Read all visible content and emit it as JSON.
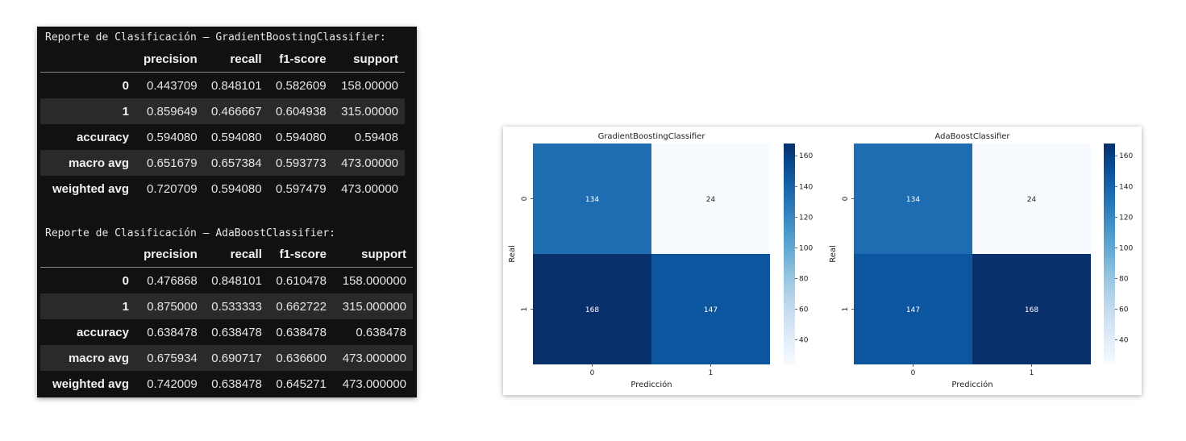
{
  "reports": [
    {
      "title": "Reporte de Clasificación – GradientBoostingClassifier:",
      "columns": [
        "",
        "precision",
        "recall",
        "f1-score",
        "support"
      ],
      "rows": [
        {
          "label": "0",
          "values": [
            "0.443709",
            "0.848101",
            "0.582609",
            "158.00000"
          ]
        },
        {
          "label": "1",
          "values": [
            "0.859649",
            "0.466667",
            "0.604938",
            "315.00000"
          ]
        },
        {
          "label": "accuracy",
          "values": [
            "0.594080",
            "0.594080",
            "0.594080",
            "0.59408"
          ]
        },
        {
          "label": "macro avg",
          "values": [
            "0.651679",
            "0.657384",
            "0.593773",
            "473.00000"
          ]
        },
        {
          "label": "weighted avg",
          "values": [
            "0.720709",
            "0.594080",
            "0.597479",
            "473.00000"
          ]
        }
      ]
    },
    {
      "title": "Reporte de Clasificación – AdaBoostClassifier:",
      "columns": [
        "",
        "precision",
        "recall",
        "f1-score",
        "support"
      ],
      "rows": [
        {
          "label": "0",
          "values": [
            "0.476868",
            "0.848101",
            "0.610478",
            "158.000000"
          ]
        },
        {
          "label": "1",
          "values": [
            "0.875000",
            "0.533333",
            "0.662722",
            "315.000000"
          ]
        },
        {
          "label": "accuracy",
          "values": [
            "0.638478",
            "0.638478",
            "0.638478",
            "0.638478"
          ]
        },
        {
          "label": "macro avg",
          "values": [
            "0.675934",
            "0.690717",
            "0.636600",
            "473.000000"
          ]
        },
        {
          "label": "weighted avg",
          "values": [
            "0.742009",
            "0.638478",
            "0.645271",
            "473.000000"
          ]
        }
      ]
    }
  ],
  "chart_data": [
    {
      "type": "heatmap",
      "title": "GradientBoostingClassifier",
      "xlabel": "Predicción",
      "ylabel": "Real",
      "x_categories": [
        "0",
        "1"
      ],
      "y_categories": [
        "0",
        "1"
      ],
      "values": [
        [
          134,
          24
        ],
        [
          168,
          147
        ]
      ],
      "colormap": "Blues",
      "vmin": 24,
      "vmax": 168,
      "colorbar_ticks": [
        40,
        60,
        80,
        100,
        120,
        140,
        160
      ]
    },
    {
      "type": "heatmap",
      "title": "AdaBoostClassifier",
      "xlabel": "Predicción",
      "ylabel": "Real",
      "x_categories": [
        "0",
        "1"
      ],
      "y_categories": [
        "0",
        "1"
      ],
      "values": [
        [
          134,
          24
        ],
        [
          147,
          168
        ]
      ],
      "colormap": "Blues",
      "vmin": 24,
      "vmax": 168,
      "colorbar_ticks": [
        40,
        60,
        80,
        100,
        120,
        140,
        160
      ]
    }
  ]
}
